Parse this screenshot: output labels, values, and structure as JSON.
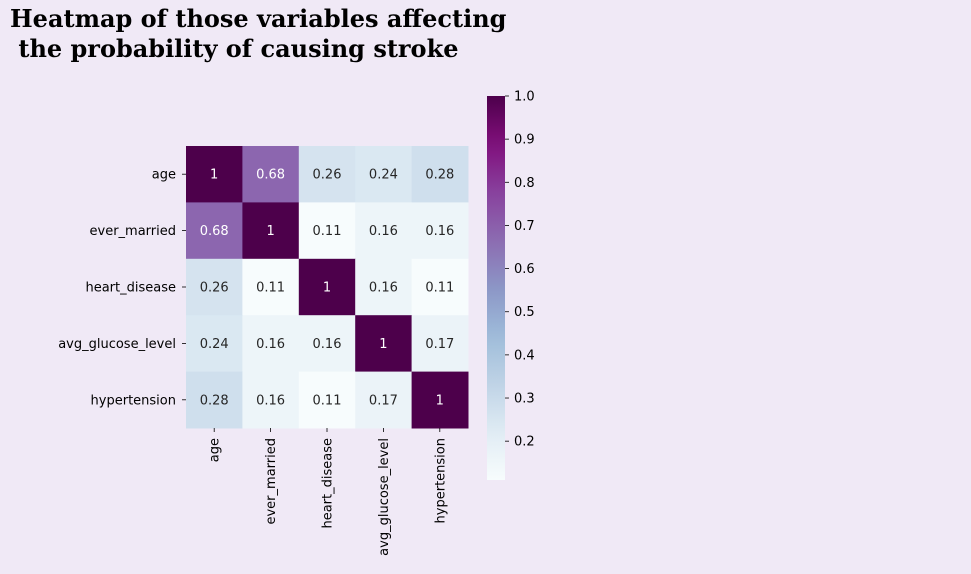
{
  "chart_data": {
    "type": "heatmap",
    "title_lines": [
      "Heatmap of those variables affecting",
      " the probability of causing stroke"
    ],
    "row_labels": [
      "age",
      "ever_married",
      "heart_disease",
      "avg_glucose_level",
      "hypertension"
    ],
    "col_labels": [
      "age",
      "ever_married",
      "heart_disease",
      "avg_glucose_level",
      "hypertension"
    ],
    "values": [
      [
        1,
        0.68,
        0.26,
        0.24,
        0.28
      ],
      [
        0.68,
        1,
        0.11,
        0.16,
        0.16
      ],
      [
        0.26,
        0.11,
        1,
        0.16,
        0.11
      ],
      [
        0.24,
        0.16,
        0.16,
        1,
        0.17
      ],
      [
        0.28,
        0.16,
        0.11,
        0.17,
        1
      ]
    ],
    "annotations": [
      [
        "1",
        "0.68",
        "0.26",
        "0.24",
        "0.28"
      ],
      [
        "0.68",
        "1",
        "0.11",
        "0.16",
        "0.16"
      ],
      [
        "0.26",
        "0.11",
        "1",
        "0.16",
        "0.11"
      ],
      [
        "0.24",
        "0.16",
        "0.16",
        "1",
        "0.17"
      ],
      [
        "0.28",
        "0.16",
        "0.11",
        "0.17",
        "1"
      ]
    ],
    "colormap": "BuPu",
    "colorbar": {
      "vmin": 0.11,
      "vmax": 1.0,
      "ticks": [
        0.2,
        0.3,
        0.4,
        0.5,
        0.6,
        0.7,
        0.8,
        0.9,
        1.0
      ],
      "tick_labels": [
        "0.2",
        "0.3",
        "0.4",
        "0.5",
        "0.6",
        "0.7",
        "0.8",
        "0.9",
        "1.0"
      ]
    },
    "colors": {
      "background": "#f0e9f6",
      "text_dark": "#262626",
      "text_light": "#ffffff"
    }
  }
}
